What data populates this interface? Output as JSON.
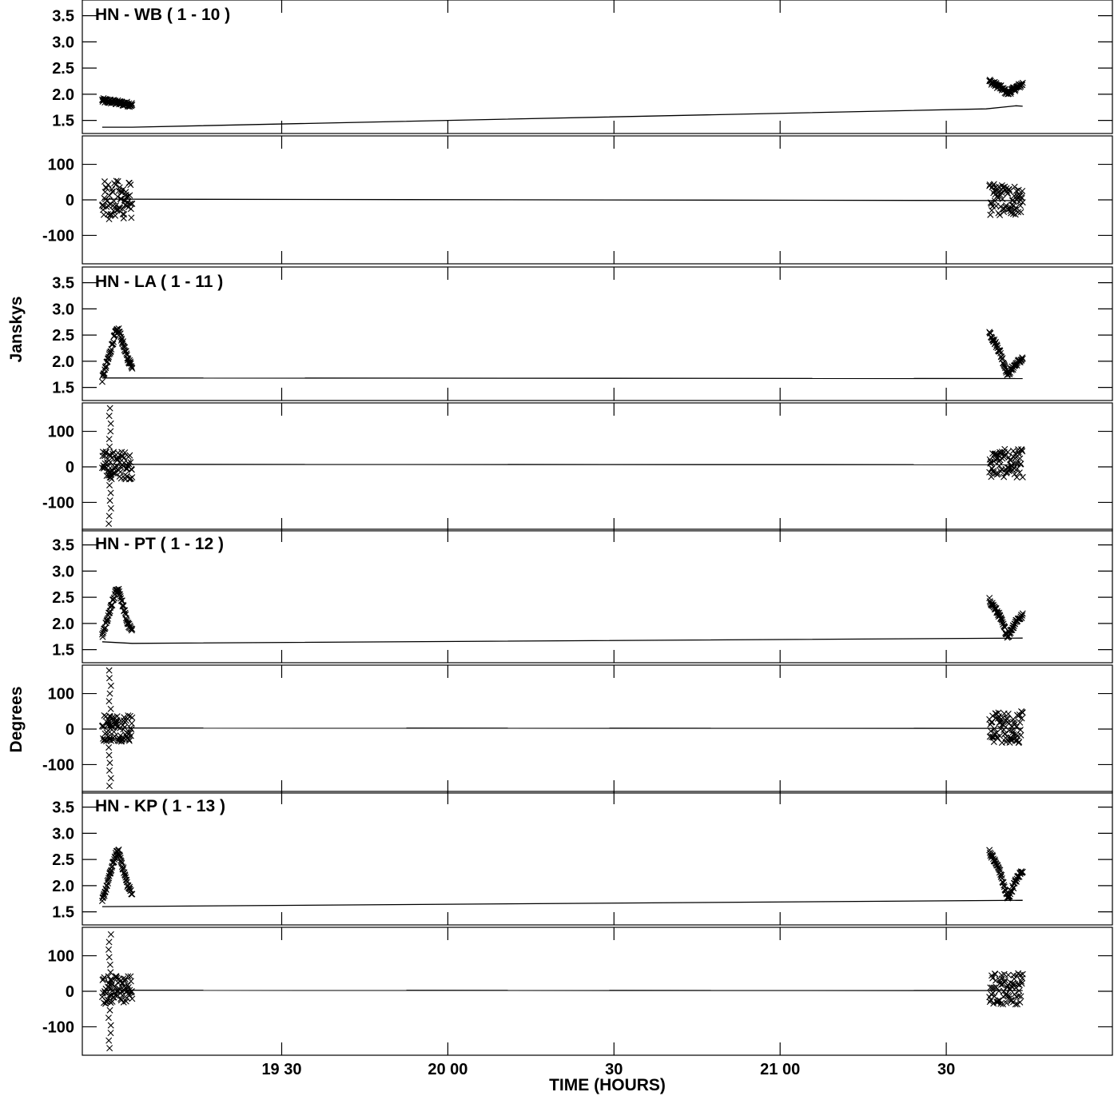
{
  "chart_data": {
    "type": "scatter",
    "ylabels": [
      "Janskys",
      "Degrees"
    ],
    "xlabel": "TIME (HOURS)",
    "xlim": [
      18.9,
      22.0
    ],
    "xticks_major": [
      {
        "value": 19.5,
        "label": "19 30"
      },
      {
        "value": 20.0,
        "label": "20 00"
      },
      {
        "value": 20.5,
        "label": "30"
      },
      {
        "value": 21.0,
        "label": "21 00"
      },
      {
        "value": 21.5,
        "label": "30"
      }
    ],
    "amplitude_axis": {
      "ylim": [
        1.25,
        3.8
      ],
      "ticks": [
        1.5,
        2.0,
        2.5,
        3.0,
        3.5
      ],
      "tick_labels": [
        "1.5",
        "2.0",
        "2.5",
        "3.0",
        "3.5"
      ]
    },
    "phase_axis": {
      "ylim": [
        -180,
        180
      ],
      "ticks": [
        -100,
        0,
        100
      ],
      "tick_labels": [
        "-100",
        "0",
        "100"
      ]
    },
    "baselines": [
      {
        "label": "HN - WB ( 1 - 10 )",
        "amp_segments": [
          {
            "t_start": 18.96,
            "t_end": 19.05,
            "shape": [
              [
                0,
                1.88
              ],
              [
                0.3,
                1.86
              ],
              [
                0.6,
                1.83
              ],
              [
                1,
                1.8
              ]
            ]
          },
          {
            "t_start": 21.63,
            "t_end": 21.73,
            "shape": [
              [
                0,
                2.25
              ],
              [
                0.35,
                2.12
              ],
              [
                0.55,
                2.02
              ],
              [
                0.8,
                2.12
              ],
              [
                1,
                2.2
              ]
            ]
          }
        ],
        "amp_model": [
          [
            18.96,
            1.37
          ],
          [
            19.05,
            1.37
          ],
          [
            21.62,
            1.72
          ],
          [
            21.68,
            1.76
          ],
          [
            21.71,
            1.78
          ],
          [
            21.73,
            1.77
          ]
        ],
        "phase_segments": [
          {
            "t_start": 18.96,
            "t_end": 19.05,
            "center": 0,
            "spread": 55
          },
          {
            "t_start": 21.63,
            "t_end": 21.73,
            "center": 0,
            "spread": 45
          }
        ],
        "phase_model": [
          [
            18.96,
            2
          ],
          [
            21.73,
            -2
          ]
        ]
      },
      {
        "label": "HN - LA ( 1 - 11 )",
        "amp_segments": [
          {
            "t_start": 18.96,
            "t_end": 19.05,
            "shape": [
              [
                0,
                1.65
              ],
              [
                0.45,
                2.55
              ],
              [
                0.55,
                2.6
              ],
              [
                0.85,
                2.05
              ],
              [
                1,
                1.9
              ]
            ]
          },
          {
            "t_start": 21.63,
            "t_end": 21.73,
            "shape": [
              [
                0,
                2.55
              ],
              [
                0.3,
                2.2
              ],
              [
                0.55,
                1.75
              ],
              [
                0.8,
                1.95
              ],
              [
                1,
                2.05
              ]
            ]
          }
        ],
        "amp_model": [
          [
            18.96,
            1.68
          ],
          [
            21.73,
            1.67
          ]
        ],
        "phase_segments": [
          {
            "t_start": 18.96,
            "t_end": 19.05,
            "center": 5,
            "spread": 40,
            "spike_range": [
              -160,
              165
            ]
          },
          {
            "t_start": 21.63,
            "t_end": 21.73,
            "center": 10,
            "spread": 40
          }
        ],
        "phase_model": [
          [
            18.96,
            7
          ],
          [
            21.73,
            6
          ]
        ]
      },
      {
        "label": "HN - PT ( 1 - 12 )",
        "amp_segments": [
          {
            "t_start": 18.96,
            "t_end": 19.05,
            "shape": [
              [
                0,
                1.75
              ],
              [
                0.45,
                2.6
              ],
              [
                0.55,
                2.65
              ],
              [
                0.85,
                2.0
              ],
              [
                1,
                1.85
              ]
            ]
          },
          {
            "t_start": 21.63,
            "t_end": 21.73,
            "shape": [
              [
                0,
                2.45
              ],
              [
                0.3,
                2.15
              ],
              [
                0.55,
                1.75
              ],
              [
                0.8,
                2.05
              ],
              [
                1,
                2.15
              ]
            ]
          }
        ],
        "amp_model": [
          [
            18.96,
            1.65
          ],
          [
            19.05,
            1.62
          ],
          [
            21.73,
            1.72
          ]
        ],
        "phase_segments": [
          {
            "t_start": 18.96,
            "t_end": 19.05,
            "center": 5,
            "spread": 40,
            "spike_range": [
              -160,
              165
            ]
          },
          {
            "t_start": 21.63,
            "t_end": 21.73,
            "center": 5,
            "spread": 45
          }
        ],
        "phase_model": [
          [
            18.96,
            3
          ],
          [
            21.73,
            2
          ]
        ]
      },
      {
        "label": "HN - KP ( 1 - 13 )",
        "amp_segments": [
          {
            "t_start": 18.96,
            "t_end": 19.05,
            "shape": [
              [
                0,
                1.7
              ],
              [
                0.45,
                2.6
              ],
              [
                0.55,
                2.65
              ],
              [
                0.85,
                2.0
              ],
              [
                1,
                1.85
              ]
            ]
          },
          {
            "t_start": 21.63,
            "t_end": 21.73,
            "shape": [
              [
                0,
                2.65
              ],
              [
                0.3,
                2.3
              ],
              [
                0.55,
                1.75
              ],
              [
                0.8,
                2.1
              ],
              [
                1,
                2.3
              ]
            ]
          }
        ],
        "amp_model": [
          [
            18.96,
            1.6
          ],
          [
            21.73,
            1.72
          ]
        ],
        "phase_segments": [
          {
            "t_start": 18.96,
            "t_end": 19.05,
            "center": 5,
            "spread": 40,
            "spike_range": [
              -160,
              160
            ]
          },
          {
            "t_start": 21.63,
            "t_end": 21.73,
            "center": 8,
            "spread": 45
          }
        ],
        "phase_model": [
          [
            18.96,
            3
          ],
          [
            21.73,
            2
          ]
        ]
      }
    ]
  }
}
